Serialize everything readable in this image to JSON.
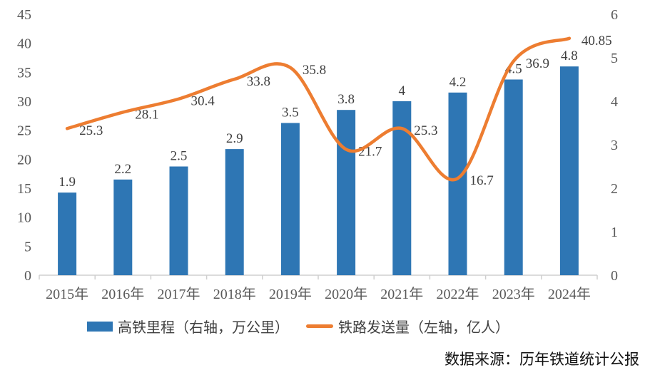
{
  "chart_data": {
    "type": "bar",
    "title": "",
    "categories": [
      "2015年",
      "2016年",
      "2017年",
      "2018年",
      "2019年",
      "2020年",
      "2021年",
      "2022年",
      "2023年",
      "2024年"
    ],
    "series": [
      {
        "name": "高铁里程（右轴，万公里）",
        "type": "bar",
        "axis": "right",
        "values": [
          1.9,
          2.2,
          2.5,
          2.9,
          3.5,
          3.8,
          4,
          4.2,
          4.5,
          4.8
        ]
      },
      {
        "name": "铁路发送量（左轴，亿人）",
        "type": "line",
        "axis": "left",
        "values": [
          25.3,
          28.1,
          30.4,
          33.8,
          35.8,
          21.7,
          25.3,
          16.7,
          36.9,
          40.85
        ]
      }
    ],
    "left_axis": {
      "min": 0,
      "max": 45,
      "step": 5
    },
    "right_axis": {
      "min": 0,
      "max": 6,
      "step": 1
    },
    "grid": false,
    "legend_position": "bottom",
    "data_labels": true
  },
  "legend": {
    "bar_label": "高铁里程（右轴，万公里）",
    "line_label": "铁路发送量（左轴，亿人）"
  },
  "source": {
    "text": "数据来源：历年铁道统计公报"
  },
  "colors": {
    "bar": "#2e76b4",
    "line": "#ed7d31",
    "axis_text": "#595959",
    "label_text": "#3f3f3f",
    "axis_line": "#cfcfcf"
  }
}
